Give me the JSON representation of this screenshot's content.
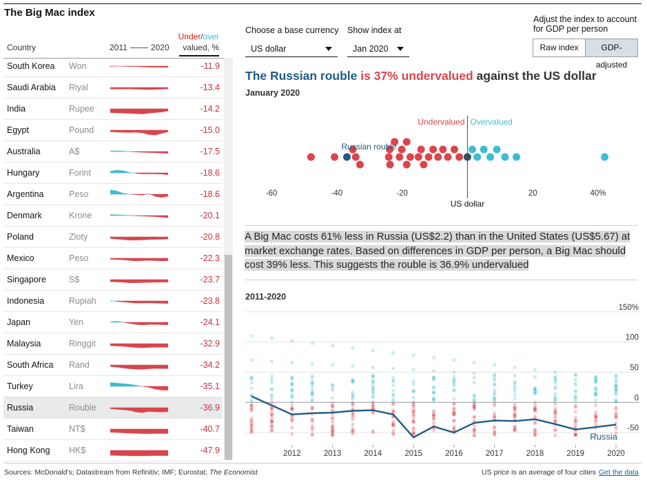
{
  "app": {
    "title": "The Big Mac index"
  },
  "table": {
    "col_country": "Country",
    "col_year_start": "2011",
    "col_year_end": "2020",
    "col_value_under": "Under",
    "col_value_slash": "/",
    "col_value_over": "over",
    "col_value_line2": "valued, %",
    "rows": [
      {
        "country": "South Korea",
        "currency": "Won",
        "value": "-11.9",
        "trend": [
          -0.05,
          0.0,
          -0.02,
          -0.04,
          -0.05,
          -0.08,
          -0.1,
          -0.11,
          -0.12,
          -0.12
        ],
        "selected": false
      },
      {
        "country": "Saudi Arabia",
        "currency": "Riyal",
        "value": "-13.4",
        "trend": [
          -0.15,
          -0.15,
          -0.14,
          -0.14,
          -0.16,
          -0.18,
          -0.2,
          -0.18,
          -0.16,
          -0.13
        ],
        "selected": false
      },
      {
        "country": "India",
        "currency": "Rupee",
        "value": "-14.2",
        "trend": [
          -0.35,
          -0.38,
          -0.4,
          -0.42,
          -0.45,
          -0.48,
          -0.4,
          -0.35,
          -0.3,
          -0.2
        ],
        "selected": false
      },
      {
        "country": "Egypt",
        "currency": "Pound",
        "value": "-15.0",
        "trend": [
          -0.15,
          -0.18,
          -0.2,
          -0.22,
          -0.2,
          -0.25,
          -0.4,
          -0.45,
          -0.3,
          -0.15
        ],
        "selected": false
      },
      {
        "country": "Australia",
        "currency": "A$",
        "value": "-17.5",
        "trend": [
          0.05,
          0.08,
          0.05,
          0.0,
          -0.05,
          -0.08,
          -0.1,
          -0.12,
          -0.15,
          -0.17
        ],
        "selected": false
      },
      {
        "country": "Hungary",
        "currency": "Forint",
        "value": "-18.6",
        "trend": [
          0.15,
          0.25,
          0.2,
          0.05,
          -0.05,
          -0.1,
          -0.1,
          -0.1,
          -0.12,
          -0.18
        ],
        "selected": false
      },
      {
        "country": "Argentina",
        "currency": "Peso",
        "value": "-18.6",
        "trend": [
          0.4,
          0.3,
          0.1,
          0.0,
          -0.05,
          -0.1,
          0.05,
          -0.2,
          -0.3,
          -0.18
        ],
        "selected": false
      },
      {
        "country": "Denmark",
        "currency": "Krone",
        "value": "-20.1",
        "trend": [
          0.1,
          0.08,
          0.05,
          0.02,
          -0.03,
          -0.05,
          -0.08,
          -0.1,
          -0.15,
          -0.2
        ],
        "selected": false
      },
      {
        "country": "Poland",
        "currency": "Zloty",
        "value": "-20.8",
        "trend": [
          -0.15,
          -0.2,
          -0.25,
          -0.3,
          -0.3,
          -0.28,
          -0.25,
          -0.23,
          -0.22,
          -0.2
        ],
        "selected": false
      },
      {
        "country": "Mexico",
        "currency": "Peso",
        "value": "-22.3",
        "trend": [
          -0.1,
          -0.12,
          -0.15,
          -0.2,
          -0.25,
          -0.22,
          -0.2,
          -0.22,
          -0.25,
          -0.22
        ],
        "selected": false
      },
      {
        "country": "Singapore",
        "currency": "S$",
        "value": "-23.7",
        "trend": [
          -0.2,
          -0.22,
          -0.25,
          -0.3,
          -0.3,
          -0.28,
          -0.26,
          -0.25,
          -0.24,
          -0.24
        ],
        "selected": false
      },
      {
        "country": "Indonesia",
        "currency": "Rupiah",
        "value": "-23.8",
        "trend": [
          0.05,
          -0.05,
          -0.1,
          -0.15,
          -0.2,
          -0.2,
          -0.18,
          -0.2,
          -0.22,
          -0.24
        ],
        "selected": false
      },
      {
        "country": "Japan",
        "currency": "Yen",
        "value": "-24.1",
        "trend": [
          0.05,
          0.1,
          0.0,
          -0.1,
          -0.2,
          -0.25,
          -0.2,
          -0.2,
          -0.22,
          -0.24
        ],
        "selected": false
      },
      {
        "country": "Malaysia",
        "currency": "Ringgit",
        "value": "-32.9",
        "trend": [
          -0.2,
          -0.22,
          -0.25,
          -0.3,
          -0.35,
          -0.38,
          -0.35,
          -0.33,
          -0.33,
          -0.33
        ],
        "selected": false
      },
      {
        "country": "South Africa",
        "currency": "Rand",
        "value": "-34.2",
        "trend": [
          -0.15,
          -0.2,
          -0.28,
          -0.35,
          -0.38,
          -0.4,
          -0.35,
          -0.32,
          -0.33,
          -0.34
        ],
        "selected": false
      },
      {
        "country": "Turkey",
        "currency": "Lira",
        "value": "-35.1",
        "trend": [
          0.35,
          0.3,
          0.25,
          0.2,
          0.1,
          0.0,
          -0.1,
          -0.25,
          -0.35,
          -0.35
        ],
        "selected": false
      },
      {
        "country": "Russia",
        "currency": "Rouble",
        "value": "-36.9",
        "trend": [
          -0.1,
          -0.15,
          -0.2,
          -0.25,
          -0.4,
          -0.45,
          -0.35,
          -0.38,
          -0.4,
          -0.37
        ],
        "selected": true
      },
      {
        "country": "Taiwan",
        "currency": "NT$",
        "value": "-40.7",
        "trend": [
          -0.3,
          -0.32,
          -0.35,
          -0.38,
          -0.4,
          -0.42,
          -0.42,
          -0.41,
          -0.41,
          -0.41
        ],
        "selected": false
      },
      {
        "country": "Hong Kong",
        "currency": "HK$",
        "value": "-47.9",
        "trend": [
          -0.45,
          -0.47,
          -0.48,
          -0.5,
          -0.5,
          -0.5,
          -0.49,
          -0.48,
          -0.48,
          -0.48
        ],
        "selected": false
      }
    ]
  },
  "controls": {
    "base_currency_label": "Choose a base currency",
    "base_currency_value": "US dollar",
    "show_index_label": "Show index at",
    "show_index_value": "Jan 2020",
    "adjust_label_line1": "Adjust the index to account",
    "adjust_label_line2": "for GDP per person",
    "toggle_raw": "Raw index",
    "toggle_gdp": "GDP-adjusted",
    "active_toggle": "GDP-adjusted"
  },
  "headline": {
    "part1": "The Russian rouble",
    "part2": " is 37% undervalued",
    "part3": " against the US dollar",
    "date": "January 2020"
  },
  "description": "A Big Mac costs 61% less in Russia (US$2.2) than in the United States (US$5.67) at market exchange rates. Based on differences in GDP per person, a Big Mac should cost 39% less. This suggests the rouble is 36.9% undervalued",
  "chart_data": [
    {
      "type": "scatter",
      "label_under": "Undervalued",
      "label_over": "Overvalued",
      "label_highlight": "Russian rouble",
      "baseline_label": "US dollar",
      "x_ticks": [
        "-60",
        "-40",
        "-20",
        "20",
        "40%"
      ],
      "x_tick_values": [
        -60,
        -40,
        -20,
        20,
        40
      ],
      "xlim": [
        -62,
        45
      ],
      "highlight_value": -36.9,
      "values": [
        -47.9,
        -40.7,
        -36.9,
        -35.1,
        -34.2,
        -32.9,
        -24.1,
        -23.8,
        -23.7,
        -22.3,
        -20.8,
        -20.1,
        -18.6,
        -18.6,
        -17.5,
        -15.0,
        -14.2,
        -13.4,
        -11.9,
        -10.5,
        -9.0,
        -7.5,
        -6.0,
        -4.0,
        -2.5,
        0.0,
        1.5,
        3.0,
        5.0,
        7.0,
        9.0,
        11.5,
        15.0,
        42.0
      ],
      "colors": {
        "under": "#db444b",
        "over": "#3ebcd2",
        "highlight": "#1f5c84",
        "base": "#36495f"
      }
    },
    {
      "type": "line",
      "title": "2011-2020",
      "x_ticks": [
        "2012",
        "2013",
        "2014",
        "2015",
        "2016",
        "2017",
        "2018",
        "2019",
        "2020"
      ],
      "y_ticks": [
        "150%",
        "100",
        "50",
        "0",
        "-50"
      ],
      "y_tick_values": [
        150,
        100,
        50,
        0,
        -50
      ],
      "ylim": [
        -75,
        160
      ],
      "series": [
        {
          "name": "Russia",
          "x": [
            2011.0,
            2011.5,
            2012.0,
            2012.5,
            2013.0,
            2013.5,
            2014.0,
            2014.5,
            2015.0,
            2015.5,
            2016.0,
            2016.5,
            2017.0,
            2017.5,
            2018.0,
            2018.5,
            2019.0,
            2019.5,
            2020.0
          ],
          "values": [
            10,
            -5,
            -20,
            -18,
            -17,
            -14,
            -13,
            -20,
            -58,
            -40,
            -50,
            -34,
            -30,
            -31,
            -28,
            -36,
            -45,
            -41,
            -36.9
          ]
        }
      ],
      "colors": {
        "line": "#1f5c84",
        "under": "#db444b",
        "over": "#3ebcd2"
      }
    }
  ],
  "footer": {
    "sources_prefix": "Sources: McDonald's; Datastream from Refinitiv; IMF; Eurostat; ",
    "sources_em": "The Economist",
    "note": "US price is an average of four cities",
    "get_data": "Get the data"
  }
}
